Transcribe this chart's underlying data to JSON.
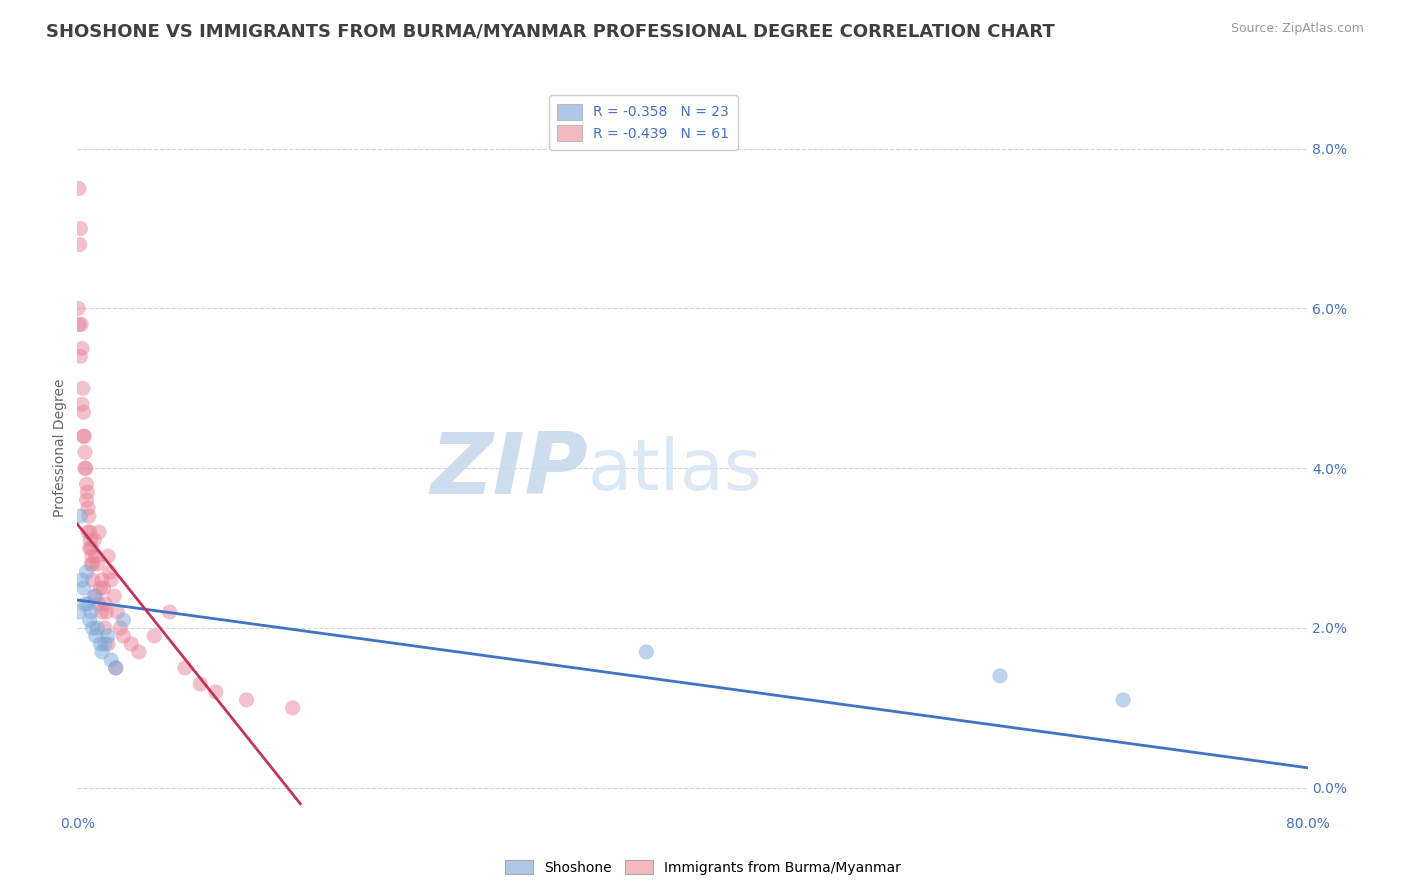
{
  "title": "SHOSHONE VS IMMIGRANTS FROM BURMA/MYANMAR PROFESSIONAL DEGREE CORRELATION CHART",
  "source": "Source: ZipAtlas.com",
  "ylabel": "Professional Degree",
  "right_ytick_vals": [
    0.0,
    2.0,
    4.0,
    6.0,
    8.0
  ],
  "xlim": [
    0.0,
    80.0
  ],
  "ylim": [
    -0.3,
    8.8
  ],
  "legend": [
    {
      "label": "R = -0.358   N = 23",
      "color": "#aec6e8"
    },
    {
      "label": "R = -0.439   N = 61",
      "color": "#f4b8c1"
    }
  ],
  "watermark_zip": "ZIP",
  "watermark_atlas": "atlas",
  "shoshone_scatter_x": [
    0.1,
    0.2,
    0.3,
    0.4,
    0.5,
    0.6,
    0.7,
    0.8,
    0.9,
    1.0,
    1.1,
    1.2,
    1.3,
    1.5,
    1.6,
    1.8,
    2.0,
    2.2,
    2.5,
    3.0,
    37.0,
    60.0,
    68.0
  ],
  "shoshone_scatter_y": [
    2.2,
    3.4,
    2.6,
    2.5,
    2.3,
    2.7,
    2.3,
    2.1,
    2.2,
    2.0,
    2.4,
    1.9,
    2.0,
    1.8,
    1.7,
    1.8,
    1.9,
    1.6,
    1.5,
    2.1,
    1.7,
    1.4,
    1.1
  ],
  "burma_scatter_x": [
    0.05,
    0.1,
    0.15,
    0.2,
    0.25,
    0.3,
    0.35,
    0.4,
    0.45,
    0.5,
    0.55,
    0.6,
    0.65,
    0.7,
    0.75,
    0.8,
    0.85,
    0.9,
    0.95,
    1.0,
    1.1,
    1.2,
    1.3,
    1.4,
    1.5,
    1.6,
    1.7,
    1.8,
    1.9,
    2.0,
    2.1,
    2.2,
    2.4,
    2.6,
    2.8,
    3.0,
    3.5,
    4.0,
    5.0,
    6.0,
    7.0,
    8.0,
    9.0,
    11.0,
    14.0,
    0.1,
    0.2,
    0.3,
    0.4,
    0.5,
    0.6,
    0.7,
    0.8,
    0.9,
    1.0,
    1.2,
    1.4,
    1.6,
    1.8,
    2.0,
    2.5
  ],
  "burma_scatter_y": [
    6.0,
    7.5,
    6.8,
    7.0,
    5.8,
    5.5,
    5.0,
    4.7,
    4.4,
    4.2,
    4.0,
    3.8,
    3.7,
    3.5,
    3.4,
    3.2,
    3.1,
    3.0,
    2.9,
    2.8,
    3.1,
    2.9,
    2.8,
    3.2,
    2.5,
    2.6,
    2.5,
    2.3,
    2.2,
    2.9,
    2.7,
    2.6,
    2.4,
    2.2,
    2.0,
    1.9,
    1.8,
    1.7,
    1.9,
    2.2,
    1.5,
    1.3,
    1.2,
    1.1,
    1.0,
    5.8,
    5.4,
    4.8,
    4.4,
    4.0,
    3.6,
    3.2,
    3.0,
    2.8,
    2.6,
    2.4,
    2.3,
    2.2,
    2.0,
    1.8,
    1.5
  ],
  "shoshone_line_x": [
    0.0,
    80.0
  ],
  "shoshone_line_y": [
    2.35,
    0.25
  ],
  "burma_line_x": [
    0.0,
    14.5
  ],
  "burma_line_y": [
    3.3,
    -0.2
  ],
  "shoshone_color": "#4472c4",
  "burma_color": "#c0355a",
  "shoshone_scatter_color": "#7aa8d8",
  "burma_scatter_color": "#e8859a",
  "background_color": "#ffffff",
  "grid_color": "#cccccc",
  "title_color": "#404040",
  "axis_color": "#4472c4",
  "title_fontsize": 13,
  "axis_label_fontsize": 10,
  "tick_fontsize": 10,
  "legend_fontsize": 10,
  "source_fontsize": 9
}
